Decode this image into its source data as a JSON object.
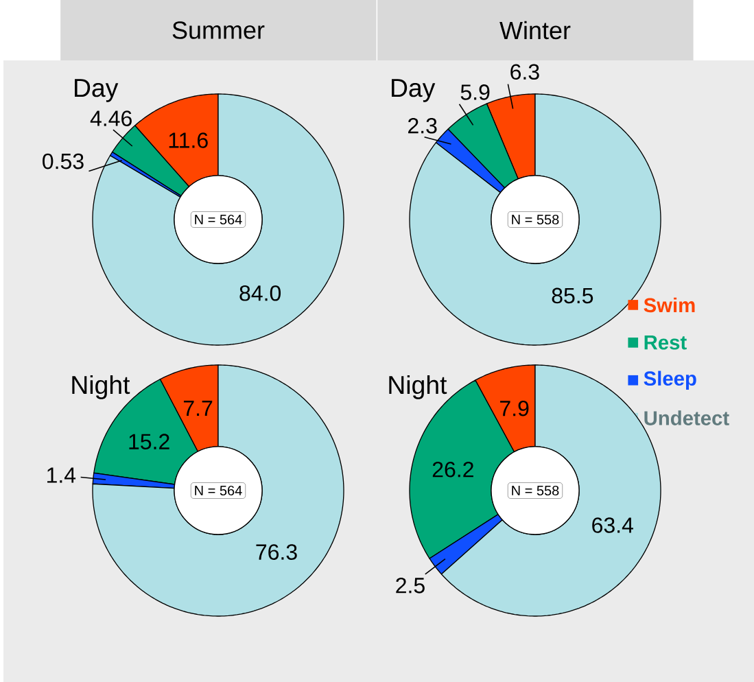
{
  "chart_data": [
    {
      "type": "donut",
      "title": "Summer",
      "subtitle": "Day",
      "categories": [
        null,
        null,
        null,
        null
      ],
      "values": [
        11.6,
        4.46,
        0.53,
        84.0
      ],
      "value_labels": [
        "11.6",
        "4.46",
        "0.53",
        "84.0"
      ],
      "colors": [
        "#ff4500",
        "#00a878",
        "#1050ff",
        "#b0e0e6"
      ],
      "annotations": [
        "N = 564"
      ]
    },
    {
      "type": "donut",
      "title": "Winter",
      "subtitle": "Day",
      "categories": [
        "Swim",
        "Rest",
        "Sleep",
        "Undetect"
      ],
      "values": [
        6.3,
        5.9,
        2.3,
        85.5
      ],
      "colors": [
        "#ff4500",
        "#00a878",
        "#1050ff",
        "#b0e0e6"
      ],
      "data_labels": true,
      "annotations": [
        "N = 558"
      ],
      "legend": "bottom right"
    },
    {
      "type": "donut",
      "title": "Night",
      "categories": [
        null,
        null,
        null,
        null
      ],
      "values": [
        7.7,
        15.2,
        1.4,
        76.3
      ],
      "colors": [
        "#ff4500",
        "#00a878",
        "#1050ff",
        "#b0e0e6"
      ],
      "data_labels": true,
      "annotations": [
        "N = 564"
      ]
    },
    {
      "type": "donut",
      "title": "Night",
      "categories": [
        null,
        null,
        null,
        null
      ],
      "values": [
        7.9,
        26.2,
        2.5,
        63.4
      ],
      "colors": [
        "#ff4500",
        "#00a878",
        "#1050ff",
        "#b0e0e6"
      ],
      "data_labels": true,
      "annotations": [
        "N = 558"
      ]
    }
  ]
}
